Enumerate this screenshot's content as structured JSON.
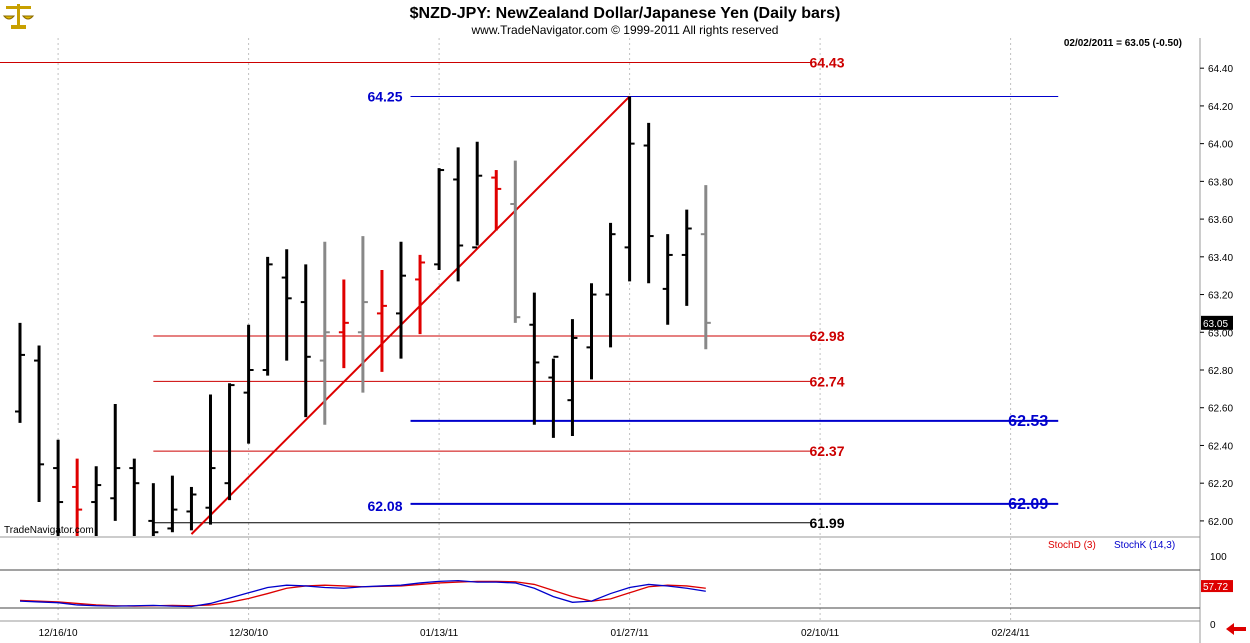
{
  "header": {
    "title": "$NZD-JPY:  NewZealand Dollar/Japanese Yen  (Daily bars)",
    "subtitle": "www.TradeNavigator.com © 1999-2011 All rights reserved",
    "last_readout": "02/02/2011 = 63.05 (-0.50)",
    "watermark": "TradeNavigator.com",
    "logo_icon": "scales-logo-icon",
    "nav_icon": "left-arrow-icon"
  },
  "colors": {
    "up": "#000000",
    "down": "#e00000",
    "neutral": "#888888",
    "blue": "#0000cc",
    "red": "#cc0000",
    "stochD": "#dd0000",
    "stochK": "#0000cc"
  },
  "chart_data": [
    {
      "type": "ohlc",
      "title": "$NZD-JPY:  NewZealand Dollar/Japanese Yen  (Daily bars)",
      "ylim": [
        61.92,
        64.56
      ],
      "yticks": [
        "62.00",
        "62.20",
        "62.40",
        "62.60",
        "62.80",
        "63.00",
        "63.20",
        "63.40",
        "63.60",
        "63.80",
        "64.00",
        "64.20",
        "64.40"
      ],
      "xticks": [
        {
          "label": "12/16/10",
          "bar": 2
        },
        {
          "label": "12/30/10",
          "bar": 12
        },
        {
          "label": "01/13/11",
          "bar": 22
        },
        {
          "label": "01/27/11",
          "bar": 32
        },
        {
          "label": "02/10/11",
          "bar": 42
        },
        {
          "label": "02/24/11",
          "bar": 52
        }
      ],
      "last_price": "63.05",
      "bars": [
        {
          "h": 63.05,
          "l": 62.52,
          "o": 62.58,
          "c": 62.88,
          "col": "up"
        },
        {
          "h": 62.93,
          "l": 62.1,
          "o": 62.85,
          "c": 62.3,
          "col": "up"
        },
        {
          "h": 62.43,
          "l": 61.92,
          "o": 62.28,
          "c": 62.1,
          "col": "up"
        },
        {
          "h": 62.33,
          "l": 61.92,
          "o": 62.18,
          "c": 62.06,
          "col": "down"
        },
        {
          "h": 62.29,
          "l": 61.92,
          "o": 62.1,
          "c": 62.19,
          "col": "up"
        },
        {
          "h": 62.62,
          "l": 62.0,
          "o": 62.12,
          "c": 62.28,
          "col": "up"
        },
        {
          "h": 62.33,
          "l": 61.92,
          "o": 62.28,
          "c": 62.2,
          "col": "up"
        },
        {
          "h": 62.2,
          "l": 61.92,
          "o": 62.0,
          "c": 61.94,
          "col": "up"
        },
        {
          "h": 62.24,
          "l": 61.94,
          "o": 61.96,
          "c": 62.06,
          "col": "up"
        },
        {
          "h": 62.18,
          "l": 61.95,
          "o": 62.05,
          "c": 62.14,
          "col": "up"
        },
        {
          "h": 62.67,
          "l": 61.98,
          "o": 62.07,
          "c": 62.28,
          "col": "up"
        },
        {
          "h": 62.73,
          "l": 62.11,
          "o": 62.2,
          "c": 62.72,
          "col": "up"
        },
        {
          "h": 63.04,
          "l": 62.41,
          "o": 62.68,
          "c": 62.8,
          "col": "up"
        },
        {
          "h": 63.4,
          "l": 62.77,
          "o": 62.8,
          "c": 63.36,
          "col": "up"
        },
        {
          "h": 63.44,
          "l": 62.85,
          "o": 63.29,
          "c": 63.18,
          "col": "up"
        },
        {
          "h": 63.36,
          "l": 62.55,
          "o": 63.16,
          "c": 62.87,
          "col": "up"
        },
        {
          "h": 63.48,
          "l": 62.51,
          "o": 62.85,
          "c": 63.0,
          "col": "neutral"
        },
        {
          "h": 63.28,
          "l": 62.81,
          "o": 63.0,
          "c": 63.05,
          "col": "down"
        },
        {
          "h": 63.51,
          "l": 62.68,
          "o": 63.0,
          "c": 63.16,
          "col": "neutral"
        },
        {
          "h": 63.33,
          "l": 62.79,
          "o": 63.1,
          "c": 63.14,
          "col": "down"
        },
        {
          "h": 63.48,
          "l": 62.86,
          "o": 63.1,
          "c": 63.3,
          "col": "up"
        },
        {
          "h": 63.41,
          "l": 62.99,
          "o": 63.28,
          "c": 63.37,
          "col": "down"
        },
        {
          "h": 63.87,
          "l": 63.33,
          "o": 63.36,
          "c": 63.86,
          "col": "up"
        },
        {
          "h": 63.98,
          "l": 63.27,
          "o": 63.81,
          "c": 63.46,
          "col": "up"
        },
        {
          "h": 64.01,
          "l": 63.46,
          "o": 63.45,
          "c": 63.83,
          "col": "up"
        },
        {
          "h": 63.86,
          "l": 63.54,
          "o": 63.82,
          "c": 63.76,
          "col": "down"
        },
        {
          "h": 63.91,
          "l": 63.05,
          "o": 63.68,
          "c": 63.08,
          "col": "neutral"
        },
        {
          "h": 63.21,
          "l": 62.51,
          "o": 63.04,
          "c": 62.84,
          "col": "up"
        },
        {
          "h": 62.86,
          "l": 62.44,
          "o": 62.76,
          "c": 62.87,
          "col": "up"
        },
        {
          "h": 63.07,
          "l": 62.45,
          "o": 62.64,
          "c": 62.97,
          "col": "up"
        },
        {
          "h": 63.26,
          "l": 62.75,
          "o": 62.92,
          "c": 63.2,
          "col": "up"
        },
        {
          "h": 63.58,
          "l": 62.92,
          "o": 63.2,
          "c": 63.52,
          "col": "up"
        },
        {
          "h": 64.25,
          "l": 63.27,
          "o": 63.45,
          "c": 64.0,
          "col": "up"
        },
        {
          "h": 64.11,
          "l": 63.26,
          "o": 63.99,
          "c": 63.51,
          "col": "up"
        },
        {
          "h": 63.52,
          "l": 63.04,
          "o": 63.23,
          "c": 63.41,
          "col": "up"
        },
        {
          "h": 63.65,
          "l": 63.14,
          "o": 63.41,
          "c": 63.55,
          "col": "up"
        },
        {
          "h": 63.78,
          "l": 62.91,
          "o": 63.52,
          "c": 63.05,
          "col": "neutral"
        }
      ],
      "trendline": {
        "from": {
          "bar": 9,
          "price": 61.93
        },
        "to": {
          "bar": 32,
          "price": 64.25
        }
      },
      "levels": [
        {
          "value": 64.43,
          "label": "64.43",
          "color": "red",
          "fromBar": -1,
          "toBar": 41.5,
          "labelSide": "right",
          "size": "normal"
        },
        {
          "value": 64.25,
          "label": "64.25",
          "color": "blue",
          "fromBar": 20.5,
          "toBar": 54.5,
          "labelSide": "left",
          "size": "normal"
        },
        {
          "value": 62.98,
          "label": "62.98",
          "color": "red",
          "fromBar": 7,
          "toBar": 41.5,
          "labelSide": "right",
          "size": "normal"
        },
        {
          "value": 62.74,
          "label": "62.74",
          "color": "red",
          "fromBar": 7,
          "toBar": 41.5,
          "labelSide": "right",
          "size": "normal"
        },
        {
          "value": 62.53,
          "label": "62.53",
          "color": "blue",
          "fromBar": 20.5,
          "toBar": 54.5,
          "labelSide": "right",
          "size": "big"
        },
        {
          "value": 62.37,
          "label": "62.37",
          "color": "red",
          "fromBar": 7,
          "toBar": 41.5,
          "labelSide": "right",
          "size": "normal"
        },
        {
          "value": 62.09,
          "label": "62.09",
          "color": "blue",
          "fromBar": 20.5,
          "toBar": 54.5,
          "labelSide": "right",
          "size": "big"
        },
        {
          "value": 62.08,
          "label": "62.08",
          "color": "blue",
          "fromBar": 20.5,
          "toBar": 20.5,
          "labelSide": "left",
          "size": "normal"
        },
        {
          "value": 61.99,
          "label": "61.99",
          "color": "black",
          "fromBar": 7,
          "toBar": 41.5,
          "labelSide": "right",
          "size": "normal"
        }
      ]
    },
    {
      "type": "line",
      "ylim": [
        0,
        100
      ],
      "yticks": [
        "100",
        "0"
      ],
      "last_value": "57.72",
      "series": [
        {
          "name": "StochD (3)",
          "color": "stochD",
          "values": [
            20,
            18,
            16,
            12,
            8,
            6,
            5,
            6,
            7,
            6,
            8,
            15,
            25,
            38,
            52,
            58,
            60,
            58,
            56,
            57,
            58,
            62,
            66,
            68,
            70,
            70,
            69,
            62,
            46,
            30,
            18,
            24,
            40,
            56,
            60,
            58,
            52
          ]
        },
        {
          "name": "StochK (14,3)",
          "color": "stochK",
          "values": [
            18,
            16,
            14,
            8,
            6,
            5,
            6,
            7,
            5,
            4,
            12,
            26,
            40,
            54,
            60,
            58,
            54,
            52,
            56,
            58,
            60,
            66,
            70,
            72,
            68,
            68,
            66,
            52,
            30,
            15,
            18,
            38,
            54,
            62,
            58,
            52,
            44
          ]
        }
      ]
    }
  ]
}
